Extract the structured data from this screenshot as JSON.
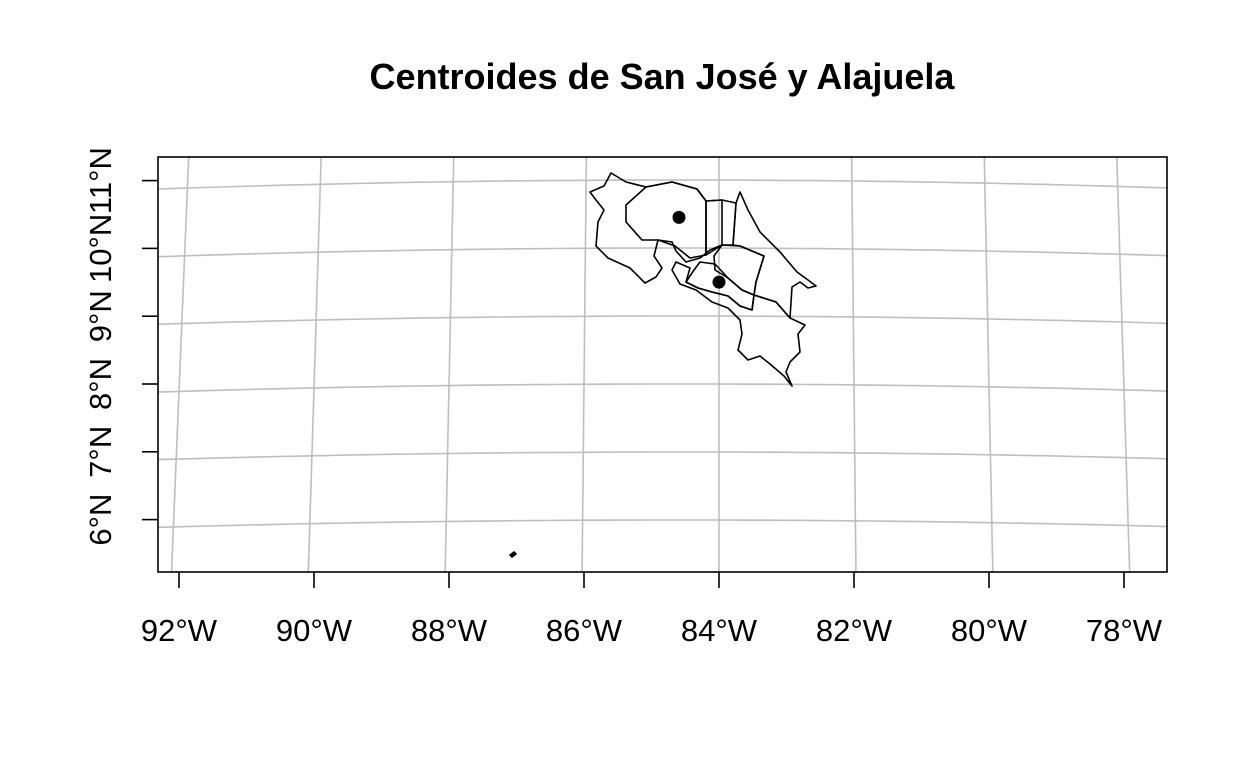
{
  "title": "Centroides de San José y Alajuela",
  "map": {
    "x_labels": [
      "92°W",
      "90°W",
      "88°W",
      "86°W",
      "84°W",
      "82°W",
      "80°W",
      "78°W"
    ],
    "y_labels": [
      "6°N",
      "7°N",
      "8°N",
      "9°N",
      "10°N",
      "11°N"
    ],
    "graticule_color": "#bebebe",
    "outline_color": "#000000",
    "centroid_color": "#000000"
  },
  "chart_data": {
    "type": "scatter",
    "title": "Centroides de San José y Alajuela",
    "xlabel": "",
    "ylabel": "",
    "xlim": [
      -92.3,
      -77.5
    ],
    "ylim": [
      5.2,
      11.3
    ],
    "grid": true,
    "x_ticks": [
      -92,
      -90,
      -88,
      -86,
      -84,
      -82,
      -80,
      -78
    ],
    "y_ticks": [
      6,
      7,
      8,
      9,
      10,
      11
    ],
    "centroids": [
      {
        "lon": -84.6,
        "lat": 10.45
      },
      {
        "lon": -84.0,
        "lat": 9.5
      }
    ]
  }
}
